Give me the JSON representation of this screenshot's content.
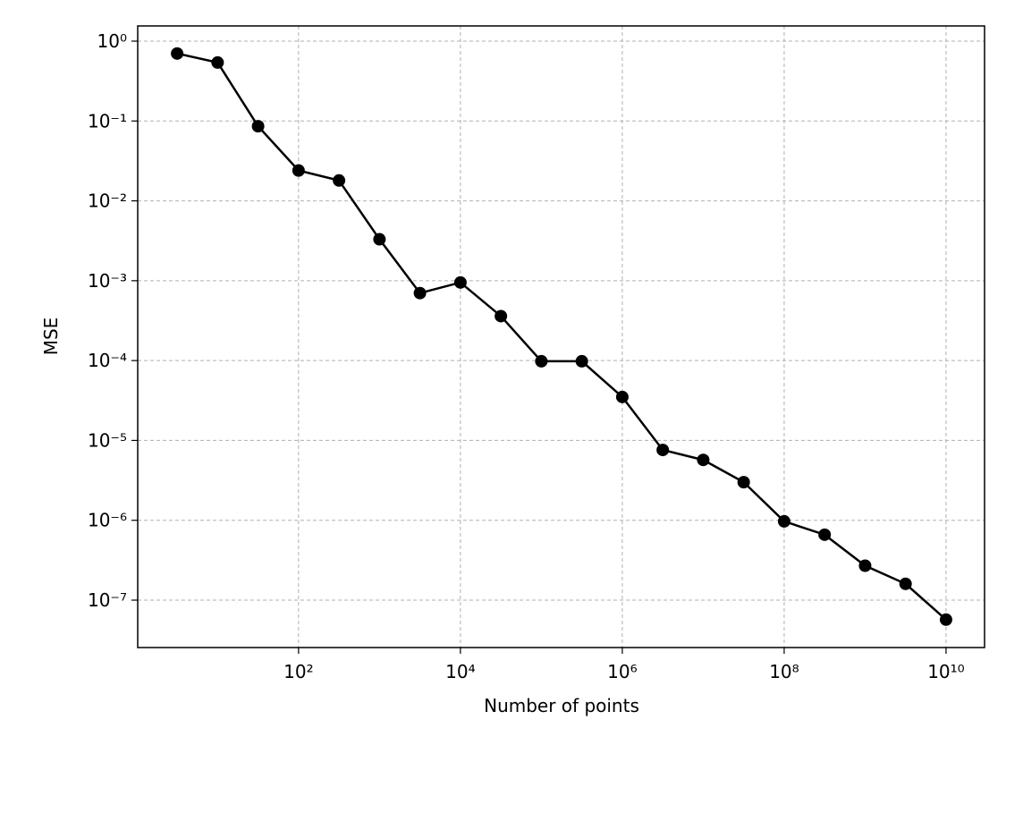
{
  "chart_data": {
    "type": "line",
    "log_x": true,
    "log_y": true,
    "grid": true,
    "x_label": "Number of points",
    "y_label": "MSE",
    "x": [
      3.162,
      10,
      31.62,
      100,
      316.2,
      1000,
      3162,
      10000,
      31623,
      100000,
      316228,
      1000000,
      3162278,
      10000000,
      31622777,
      100000000,
      316227766,
      1000000000,
      3162277660,
      10000000000
    ],
    "series": [
      {
        "name": "MSE",
        "color": "#000000",
        "values": [
          0.7,
          0.54,
          0.086,
          0.024,
          0.018,
          0.0033,
          0.0007,
          0.00095,
          0.00036,
          9.8e-05,
          9.8e-05,
          3.5e-05,
          7.6e-06,
          5.7e-06,
          3e-06,
          9.7e-07,
          6.6e-07,
          2.7e-07,
          1.6e-07,
          5.7e-08
        ]
      }
    ],
    "xlim": [
      1.03,
      29900000000
    ],
    "ylim": [
      2.55e-08,
      1.55
    ],
    "xticks": [
      {
        "value": 100,
        "label": "10²"
      },
      {
        "value": 10000,
        "label": "10⁴"
      },
      {
        "value": 1000000,
        "label": "10⁶"
      },
      {
        "value": 100000000,
        "label": "10⁸"
      },
      {
        "value": 10000000000,
        "label": "10¹⁰"
      }
    ],
    "yticks": [
      {
        "value": 1,
        "label": "10⁰"
      },
      {
        "value": 0.1,
        "label": "10⁻¹"
      },
      {
        "value": 0.01,
        "label": "10⁻²"
      },
      {
        "value": 0.001,
        "label": "10⁻³"
      },
      {
        "value": 0.0001,
        "label": "10⁻⁴"
      },
      {
        "value": 1e-05,
        "label": "10⁻⁵"
      },
      {
        "value": 1e-06,
        "label": "10⁻⁶"
      },
      {
        "value": 1e-07,
        "label": "10⁻⁷"
      }
    ]
  }
}
